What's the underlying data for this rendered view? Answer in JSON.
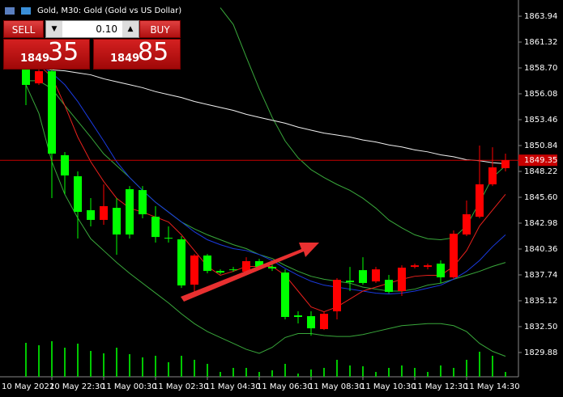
{
  "title": "Gold, M30:  Gold (Gold vs US Dollar)",
  "trade_panel": {
    "sell": "SELL",
    "buy": "BUY",
    "lot": "0.10",
    "sell_big": "1849",
    "sell_small": "35",
    "buy_big": "1849",
    "buy_small": "85"
  },
  "chart_data": {
    "type": "candlestick",
    "start_label": "10 May 2022",
    "categories": [
      null,
      null,
      "10 May 22:30",
      null,
      null,
      null,
      "11 May 00:30",
      null,
      null,
      null,
      "11 May 02:30",
      null,
      null,
      null,
      "11 May 04:30",
      null,
      null,
      null,
      "11 May 06:30",
      null,
      null,
      null,
      "11 May 08:30",
      null,
      null,
      null,
      "11 May 10:30",
      null,
      null,
      null,
      "11 May 12:30",
      null,
      null,
      null,
      "11 May 14:30",
      null,
      null,
      null
    ],
    "open": [
      1858.62,
      1857.14,
      1858.37,
      1849.86,
      1847.73,
      1844.29,
      1843.31,
      1844.53,
      1846.42,
      1846.33,
      1843.63,
      1841.5,
      1841.34,
      1836.75,
      1839.7,
      1838.14,
      1838.3,
      1838.06,
      1839.13,
      1838.55,
      1837.98,
      1833.64,
      1833.56,
      1832.25,
      1834.05,
      1837.16,
      1838.22,
      1837.08,
      1837.24,
      1836.1,
      1838.55,
      1838.55,
      1838.88,
      1837.49,
      1841.83,
      1843.63,
      1846.91,
      1848.55
    ],
    "high": [
      1859.03,
      1858.62,
      1858.62,
      1850.18,
      1848.22,
      1845.52,
      1846.91,
      1845.52,
      1846.74,
      1846.74,
      1844.7,
      1842.65,
      1841.67,
      1839.86,
      1839.86,
      1838.3,
      1838.55,
      1839.53,
      1839.37,
      1838.8,
      1838.3,
      1834.05,
      1834.05,
      1834.05,
      1837.41,
      1838.55,
      1839.53,
      1838.55,
      1837.74,
      1838.71,
      1838.88,
      1838.88,
      1839.21,
      1842.24,
      1845.27,
      1850.84,
      1850.67,
      1850.02
    ],
    "low": [
      1854.93,
      1856.98,
      1845.52,
      1845.93,
      1841.42,
      1842.65,
      1842.81,
      1839.78,
      1841.42,
      1843.47,
      1841.01,
      1841.01,
      1836.42,
      1835.93,
      1837.9,
      1837.81,
      1838.06,
      1837.9,
      1838.39,
      1838.14,
      1833.23,
      1832.82,
      1831.59,
      1832.16,
      1833.23,
      1836.1,
      1836.75,
      1836.92,
      1835.85,
      1835.61,
      1838.39,
      1838.3,
      1836.92,
      1837.33,
      1841.67,
      1843.47,
      1846.74,
      1848.22
    ],
    "close": [
      1856.98,
      1858.37,
      1850.02,
      1847.81,
      1844.12,
      1843.31,
      1844.7,
      1841.83,
      1841.83,
      1843.88,
      1841.58,
      1841.42,
      1836.67,
      1839.7,
      1838.14,
      1837.98,
      1838.22,
      1839.13,
      1838.55,
      1838.39,
      1833.48,
      1833.48,
      1832.33,
      1833.8,
      1837.24,
      1837.0,
      1836.92,
      1838.3,
      1836.02,
      1838.47,
      1838.71,
      1838.71,
      1837.49,
      1841.91,
      1843.88,
      1846.91,
      1848.63,
      1849.35
    ],
    "volume": [
      42,
      39,
      44,
      36,
      41,
      32,
      29,
      36,
      28,
      24,
      26,
      18,
      26,
      21,
      16,
      6,
      11,
      11,
      6,
      8,
      16,
      4,
      9,
      11,
      21,
      14,
      13,
      6,
      11,
      14,
      11,
      6,
      14,
      11,
      21,
      31,
      26,
      6
    ],
    "up_color": "#ff0000",
    "down_color": "#00ff00",
    "volume_color": "#00c800",
    "lines": [
      {
        "color": "#39a83b",
        "values": [
          null,
          null,
          null,
          null,
          null,
          null,
          null,
          null,
          null,
          null,
          null,
          null,
          null,
          null,
          null,
          1864.8,
          1863.1,
          1859.8,
          1856.6,
          1853.7,
          1851.3,
          1849.6,
          1848.4,
          1847.6,
          1846.9,
          1846.3,
          1845.5,
          1844.5,
          1843.3,
          1842.5,
          1841.8,
          1841.4,
          1841.3,
          1841.5,
          1842.7,
          1845.1,
          1847.6,
          1848.8
        ]
      },
      {
        "color": "#39a83b",
        "values": [
          1857.4,
          1857.4,
          1856.6,
          1854.9,
          1853.3,
          1851.7,
          1850.0,
          1848.8,
          1847.6,
          1846.3,
          1845.1,
          1844.1,
          1843.1,
          1842.4,
          1841.8,
          1841.3,
          1840.8,
          1840.4,
          1839.8,
          1839.4,
          1838.7,
          1838.1,
          1837.6,
          1837.3,
          1837.1,
          1836.9,
          1836.5,
          1836.3,
          1836.1,
          1836.1,
          1836.3,
          1836.7,
          1836.9,
          1837.3,
          1837.7,
          1838.1,
          1838.6,
          1839.0
        ]
      },
      {
        "color": "#39a83b",
        "values": [
          1857.0,
          1854.1,
          1849.2,
          1845.9,
          1843.5,
          1841.4,
          1840.2,
          1839.0,
          1837.9,
          1836.9,
          1835.9,
          1834.9,
          1833.8,
          1832.8,
          1832.0,
          1831.4,
          1830.8,
          1830.2,
          1829.8,
          1830.4,
          1831.4,
          1831.8,
          1831.8,
          1831.6,
          1831.5,
          1831.5,
          1831.7,
          1832.0,
          1832.3,
          1832.6,
          1832.7,
          1832.8,
          1832.8,
          1832.6,
          1832.0,
          1830.8,
          1830.0,
          1829.5
        ]
      },
      {
        "color": "#f0f0f0",
        "values": [
          1858.9,
          1858.7,
          1858.5,
          1858.4,
          1858.2,
          1858.0,
          1857.6,
          1857.3,
          1857.0,
          1856.7,
          1856.3,
          1856.0,
          1855.7,
          1855.3,
          1855.0,
          1854.7,
          1854.4,
          1854.0,
          1853.7,
          1853.4,
          1853.1,
          1852.7,
          1852.4,
          1852.1,
          1851.9,
          1851.7,
          1851.4,
          1851.2,
          1850.9,
          1850.7,
          1850.4,
          1850.2,
          1849.9,
          1849.7,
          1849.4,
          1849.3,
          1849.1,
          1849.0
        ]
      },
      {
        "color": "#1a3ae0",
        "values": [
          1859.4,
          1859.0,
          1858.2,
          1857.0,
          1855.3,
          1853.3,
          1851.3,
          1849.2,
          1847.6,
          1846.3,
          1845.1,
          1844.1,
          1843.1,
          1842.1,
          1841.3,
          1840.8,
          1840.4,
          1840.2,
          1839.8,
          1839.2,
          1838.4,
          1837.7,
          1837.1,
          1836.7,
          1836.5,
          1836.3,
          1836.1,
          1835.9,
          1835.8,
          1835.9,
          1836.1,
          1836.4,
          1836.7,
          1837.3,
          1838.1,
          1839.2,
          1840.6,
          1841.8
        ]
      },
      {
        "color": "#e8201c",
        "values": [
          1859.8,
          1859.0,
          1857.8,
          1854.9,
          1851.7,
          1849.2,
          1847.2,
          1845.5,
          1844.5,
          1844.1,
          1843.6,
          1843.1,
          1841.8,
          1840.2,
          1838.6,
          1837.7,
          1838.1,
          1838.6,
          1838.6,
          1838.6,
          1837.7,
          1836.1,
          1834.5,
          1834.0,
          1834.5,
          1835.3,
          1836.1,
          1836.5,
          1836.9,
          1837.3,
          1837.6,
          1837.7,
          1837.7,
          1838.6,
          1840.2,
          1842.7,
          1844.3,
          1845.9
        ]
      }
    ],
    "price_line": 1849.35,
    "price_line_color": "#c80000",
    "ylim": [
      1827.42,
      1865.58
    ],
    "yticks": [
      1863.94,
      1861.32,
      {
        "value": 1858.7,
        "label": "1858.70"
      },
      1856.08,
      1853.46,
      1850.84,
      1848.22,
      {
        "value": 1845.6,
        "label": "1845.60"
      },
      1842.98,
      1840.36,
      1837.74,
      1835.12,
      {
        "value": 1832.5,
        "label": "1832.50"
      },
      1829.88
    ],
    "grid": false
  }
}
